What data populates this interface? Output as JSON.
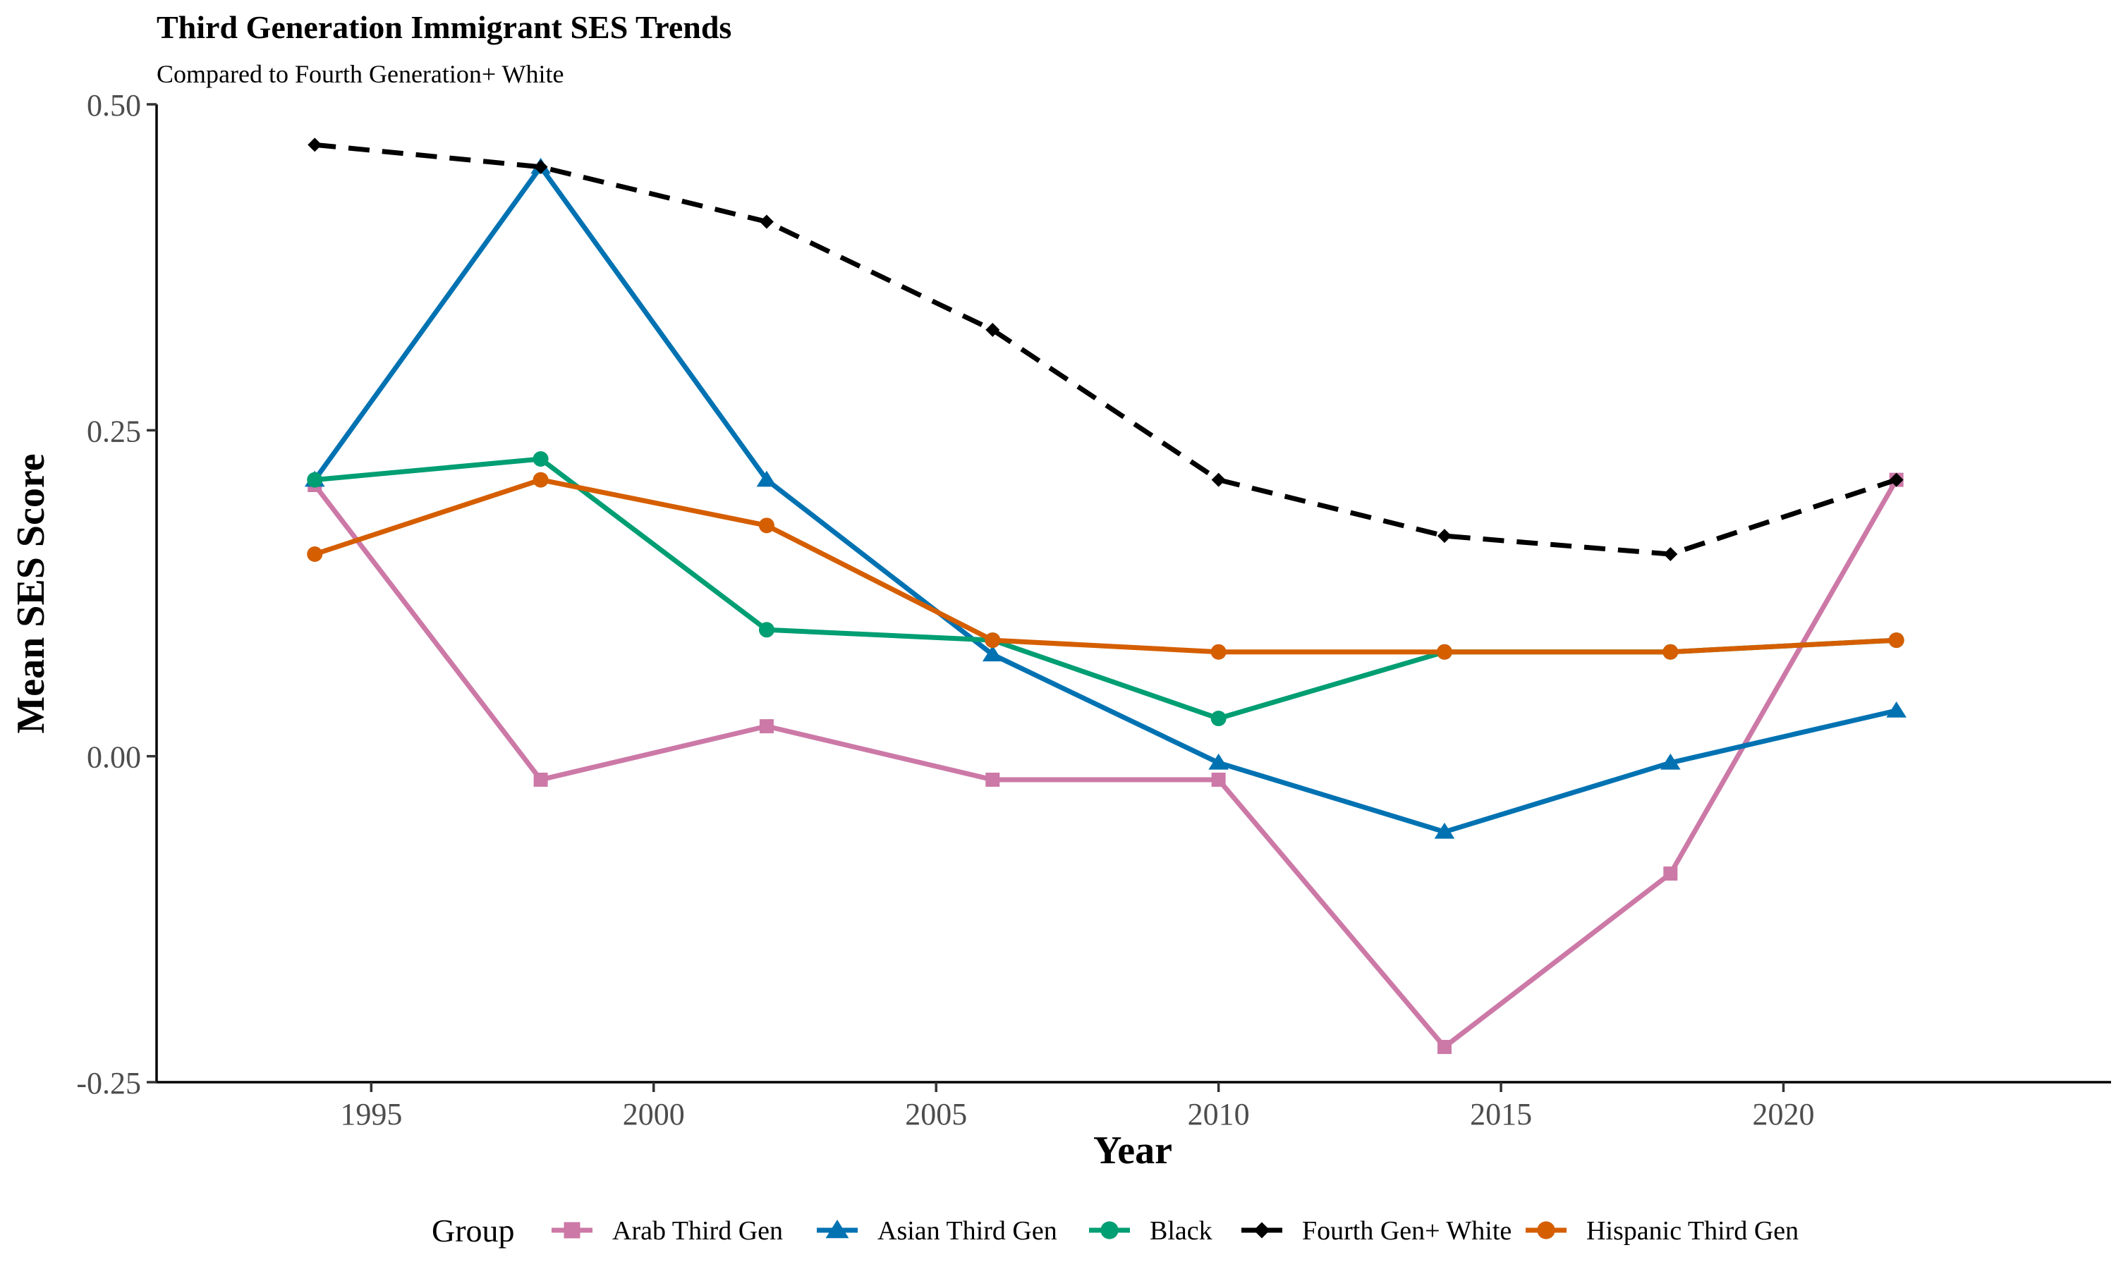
{
  "chart_data": {
    "type": "line",
    "title": "Third Generation Immigrant SES Trends",
    "subtitle": "Compared to Fourth Generation+ White",
    "xlabel": "Year",
    "ylabel": "Mean SES Score",
    "xlim": [
      1991.2,
      2025.8
    ],
    "ylim": [
      -0.25,
      0.5
    ],
    "x_ticks": [
      1995,
      2000,
      2005,
      2010,
      2015,
      2020
    ],
    "y_ticks": [
      -0.25,
      0.0,
      0.25,
      0.5
    ],
    "y_tick_labels": [
      "-0.25",
      "0.00",
      "0.25",
      "0.50"
    ],
    "x": [
      1994,
      1998,
      2002,
      2006,
      2010,
      2014,
      2018,
      2022
    ],
    "grid": false,
    "legend": {
      "title": "Group",
      "position": "bottom"
    },
    "series": [
      {
        "name": "Arab Third Gen",
        "color": "#CC79A7",
        "marker": "square",
        "dash": "solid",
        "values": [
          0.208,
          -0.018,
          0.023,
          -0.018,
          -0.018,
          -0.223,
          -0.09,
          0.212
        ]
      },
      {
        "name": "Asian Third Gen",
        "color": "#0072B2",
        "marker": "triangle",
        "dash": "solid",
        "values": [
          0.212,
          0.452,
          0.212,
          0.078,
          -0.005,
          -0.058,
          -0.005,
          0.035
        ]
      },
      {
        "name": "Black",
        "color": "#009E73",
        "marker": "circle",
        "dash": "solid",
        "values": [
          0.212,
          0.228,
          0.097,
          0.089,
          0.029,
          0.08,
          0.08,
          0.089
        ]
      },
      {
        "name": "Fourth Gen+ White",
        "color": "#000000",
        "marker": "diamond",
        "dash": "dashed",
        "values": [
          0.469,
          0.452,
          0.41,
          0.327,
          0.212,
          0.169,
          0.155,
          0.212
        ]
      },
      {
        "name": "Hispanic Third Gen",
        "color": "#D55E00",
        "marker": "circle",
        "dash": "solid",
        "values": [
          0.155,
          0.212,
          0.177,
          0.089,
          0.08,
          0.08,
          0.08,
          0.089
        ]
      }
    ]
  }
}
